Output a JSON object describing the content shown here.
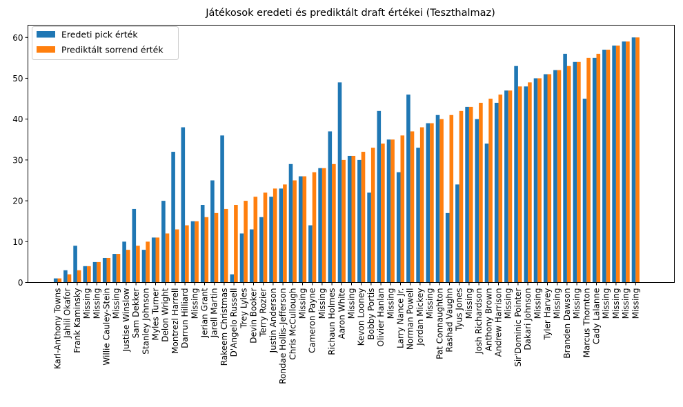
{
  "chart_data": {
    "type": "bar",
    "title": "Játékosok eredeti és prediktált draft értékei (Teszthalmaz)",
    "xlabel": "",
    "ylabel": "",
    "ylim": [
      0,
      63
    ],
    "yticks": [
      0,
      10,
      20,
      30,
      40,
      50,
      60
    ],
    "legend_position": "top-left",
    "grid": false,
    "categories": [
      "Karl-Anthony Towns",
      "Jahlil Okafor",
      "Frank Kaminsky",
      "Missing",
      "Missing",
      "Willie Cauley-Stein",
      "Missing",
      "Justise Winslow",
      "Sam Dekker",
      "Stanley Johnson",
      "Myles Turner",
      "Delon Wright",
      "Montrezl Harrell",
      "Darrun Hilliard",
      "Missing",
      "Jerian Grant",
      "Jarell Martin",
      "Rakeem Christmas",
      "D'Angelo Russell",
      "Trey Lyles",
      "Devin Booker",
      "Terry Rozier",
      "Justin Anderson",
      "Rondae Hollis-Jefferson",
      "Chris McCullough",
      "Missing",
      "Cameron Payne",
      "Missing",
      "Richaun Holmes",
      "Aaron White",
      "Missing",
      "Kevon Looney",
      "Bobby Portis",
      "Olivier Hanlan",
      "Missing",
      "Larry Nance Jr.",
      "Norman Powell",
      "Jordan Mickey",
      "Missing",
      "Pat Connaughton",
      "Rashad Vaughn",
      "Tyus Jones",
      "Missing",
      "Josh Richardson",
      "Anthony Brown",
      "Andrew Harrison",
      "Missing",
      "Sir'Dominic Pointer",
      "Dakari Johnson",
      "Missing",
      "Tyler Harvey",
      "Missing",
      "Branden Dawson",
      "Missing",
      "Marcus Thornton",
      "Cady Lalanne",
      "Missing",
      "Missing",
      "Missing",
      "Missing"
    ],
    "series": [
      {
        "name": "Eredeti pick érték",
        "color": "#1f77b4",
        "values": [
          1,
          3,
          9,
          4,
          5,
          6,
          7,
          10,
          18,
          8,
          11,
          20,
          32,
          38,
          15,
          19,
          25,
          36,
          2,
          12,
          13,
          16,
          21,
          23,
          29,
          26,
          14,
          28,
          37,
          49,
          31,
          30,
          22,
          42,
          35,
          27,
          46,
          33,
          39,
          41,
          17,
          24,
          43,
          40,
          34,
          44,
          47,
          53,
          48,
          50,
          51,
          52,
          56,
          54,
          45,
          55,
          57,
          58,
          59,
          60
        ]
      },
      {
        "name": "Prediktált sorrend érték",
        "color": "#ff7f0e",
        "values": [
          1,
          2,
          3,
          4,
          5,
          6,
          7,
          8,
          9,
          10,
          11,
          12,
          13,
          14,
          15,
          16,
          17,
          18,
          19,
          20,
          21,
          22,
          23,
          24,
          25,
          26,
          27,
          28,
          29,
          30,
          31,
          32,
          33,
          34,
          35,
          36,
          37,
          38,
          39,
          40,
          41,
          42,
          43,
          44,
          45,
          46,
          47,
          48,
          49,
          50,
          51,
          52,
          53,
          54,
          55,
          56,
          57,
          58,
          59,
          60
        ]
      }
    ]
  }
}
